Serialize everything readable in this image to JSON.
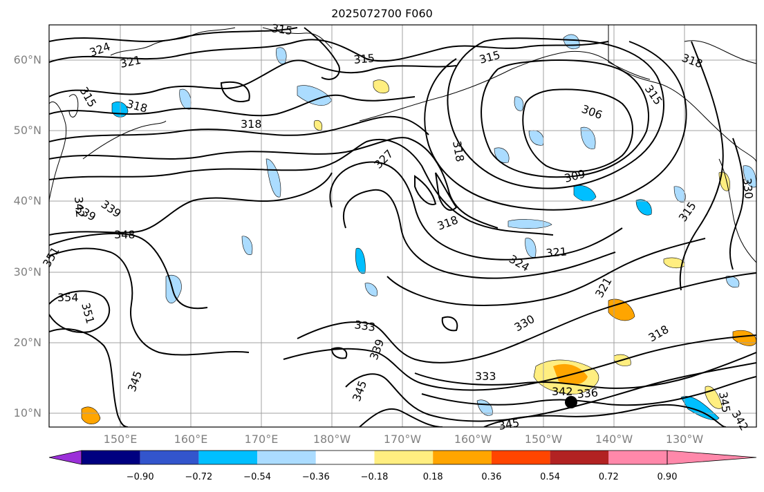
{
  "title": "2025072700 F060",
  "lat_labels": [
    "60°N",
    "50°N",
    "40°N",
    "30°N",
    "20°N",
    "10°N"
  ],
  "lon_labels": [
    "150°E",
    "160°E",
    "170°E",
    "180°W",
    "170°W",
    "160°W",
    "150°W",
    "140°W",
    "130°W"
  ],
  "colorbar": {
    "ticks": [
      "−0.90",
      "−0.72",
      "−0.54",
      "−0.36",
      "−0.18",
      "0.18",
      "0.36",
      "0.54",
      "0.72",
      "0.90"
    ],
    "colors": [
      "#9b30d9",
      "#000080",
      "#3355cc",
      "#00bfff",
      "#abdcff",
      "#ffffff",
      "#ffee80",
      "#ffa500",
      "#ff4500",
      "#b22222",
      "#ff88aa"
    ]
  },
  "contour_labels": [
    "315",
    "324",
    "321",
    "315",
    "318",
    "318",
    "315",
    "315",
    "318",
    "306",
    "315",
    "327",
    "318",
    "342",
    "339",
    "339",
    "348",
    "309",
    "318",
    "315",
    "330",
    "351",
    "354",
    "351",
    "324",
    "321",
    "321",
    "333",
    "330",
    "318",
    "339",
    "345",
    "333",
    "342",
    "336",
    "345",
    "345",
    "342",
    "345"
  ],
  "marker": "storm-center"
}
